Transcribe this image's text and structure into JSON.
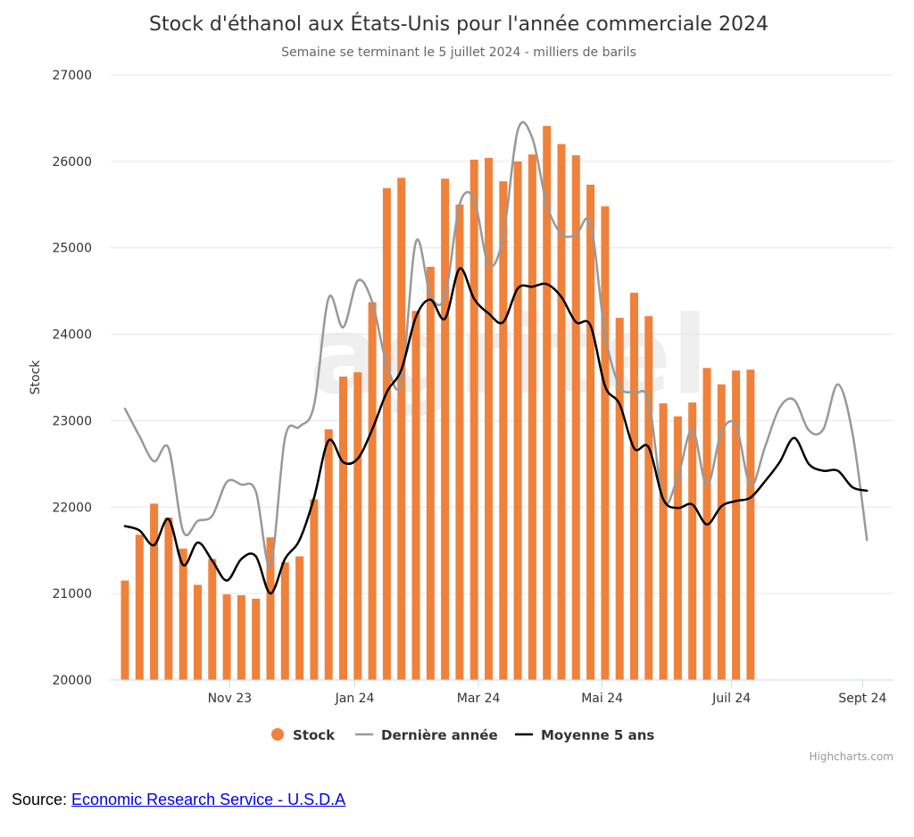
{
  "chart_data": {
    "type": "bar",
    "title": "Stock d'éthanol aux États-Unis pour l'année commerciale 2024",
    "subtitle": "Semaine se terminant le 5 juillet 2024 - milliers de barils",
    "ylabel": "Stock",
    "ylim": [
      20000,
      27000
    ],
    "yticks": [
      "20000",
      "21000",
      "22000",
      "23000",
      "24000",
      "25000",
      "26000",
      "27000"
    ],
    "xticks": [
      "Nov 23",
      "Jan 24",
      "Mar 24",
      "Mai 24",
      "Juil 24",
      "Sept 24"
    ],
    "xtick_weeks": [
      7.2,
      15.8,
      24.3,
      32.8,
      41.7,
      50.7
    ],
    "x_unit": "semaines de l'année commerciale (0 = première semaine de septembre 2023)",
    "grid": true,
    "legend_position": "bottom",
    "series": [
      {
        "name": "Stock",
        "kind": "bar",
        "color": "#f0813a",
        "values": [
          21150,
          21680,
          22040,
          21880,
          21520,
          21100,
          21400,
          20990,
          20980,
          20940,
          21650,
          21360,
          21430,
          22090,
          22900,
          23510,
          23560,
          24370,
          25690,
          25810,
          24270,
          24780,
          25800,
          25500,
          26020,
          26040,
          25770,
          26000,
          26080,
          26410,
          26200,
          26070,
          25730,
          25480,
          24190,
          24480,
          24210,
          23200,
          23050,
          23210,
          23610,
          23420,
          23580,
          23590
        ]
      },
      {
        "name": "Dernière année",
        "kind": "line",
        "color": "#999999",
        "values": [
          23140,
          22820,
          22530,
          22680,
          21720,
          21840,
          21900,
          22290,
          22260,
          22180,
          21320,
          22800,
          22930,
          23180,
          24420,
          24080,
          24620,
          24370,
          23650,
          23450,
          25070,
          24450,
          24440,
          25500,
          25560,
          24800,
          25130,
          26360,
          26270,
          25500,
          25160,
          25150,
          25280,
          24000,
          23400,
          23320,
          23230,
          22070,
          22350,
          22900,
          22250,
          22870,
          22940,
          22250,
          22700,
          23150,
          23240,
          22890,
          22900,
          23420,
          22860,
          21620
        ]
      },
      {
        "name": "Moyenne 5 ans",
        "kind": "line",
        "color": "#000000",
        "values": [
          21780,
          21730,
          21560,
          21860,
          21330,
          21590,
          21380,
          21150,
          21400,
          21430,
          21000,
          21400,
          21620,
          22110,
          22770,
          22520,
          22560,
          22900,
          23330,
          23590,
          24200,
          24400,
          24180,
          24760,
          24410,
          24240,
          24140,
          24530,
          24550,
          24580,
          24430,
          24140,
          24100,
          23400,
          23190,
          22680,
          22690,
          22090,
          21990,
          22030,
          21800,
          22010,
          22070,
          22110,
          22300,
          22520,
          22800,
          22500,
          22420,
          22420,
          22230,
          22190
        ]
      }
    ]
  },
  "credits": "Highcharts.com",
  "watermark": "agritel",
  "source": {
    "prefix": "Source: ",
    "link_text": "Economic Research Service - U.S.D.A"
  }
}
